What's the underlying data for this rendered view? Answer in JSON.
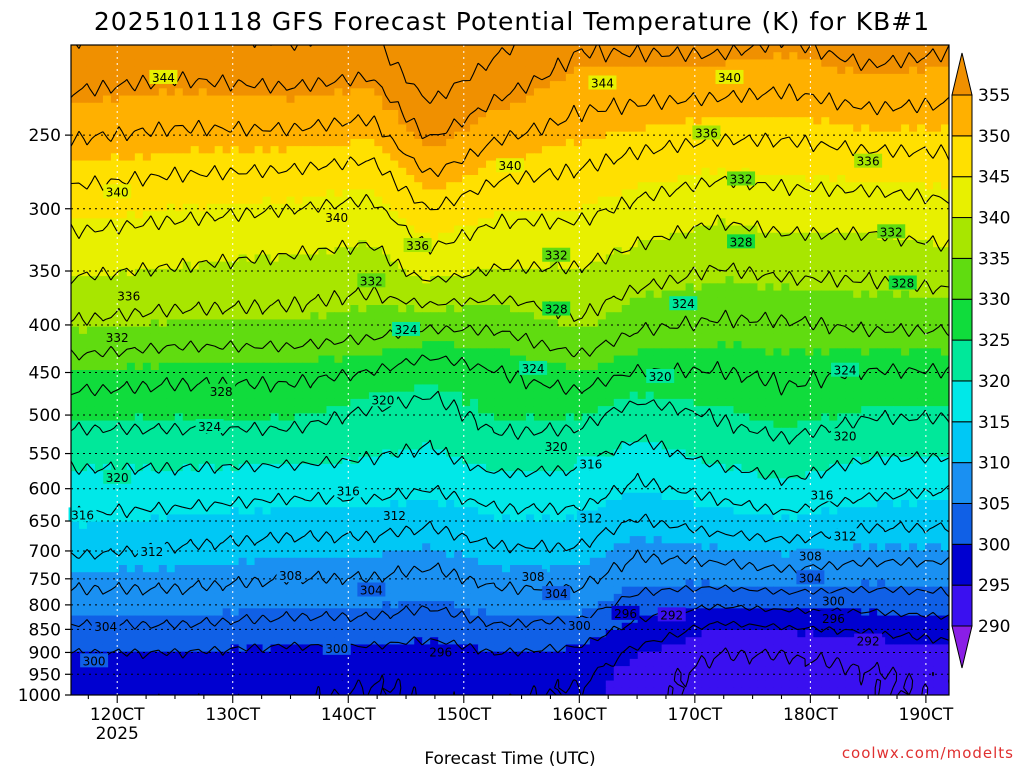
{
  "chart_data": {
    "type": "heatmap",
    "title": "2025101118 GFS Forecast Potential Temperature (K) for KB#1",
    "xlabel": "Forecast Time (UTC)",
    "ylabel": "",
    "x_ticks": [
      "120CT",
      "130CT",
      "140CT",
      "150CT",
      "160CT",
      "170CT",
      "180CT",
      "190CT"
    ],
    "x_tick_year": "2025",
    "x_range_days": [
      11.6,
      19.2
    ],
    "y_ticks": [
      250,
      300,
      350,
      400,
      450,
      500,
      550,
      600,
      650,
      700,
      750,
      800,
      850,
      900,
      950,
      1000
    ],
    "y_range_hpa": [
      200,
      1000
    ],
    "y_scale": "log",
    "colorbar": {
      "levels": [
        290,
        295,
        300,
        305,
        310,
        315,
        320,
        325,
        330,
        335,
        340,
        345,
        350,
        355
      ],
      "colors": [
        "#8a1ee6",
        "#3a10f0",
        "#0000d0",
        "#1060e6",
        "#1a90f2",
        "#00c8f5",
        "#00e8e8",
        "#00e89a",
        "#10dc3c",
        "#60dc10",
        "#a8e600",
        "#e8f000",
        "#ffe000",
        "#ffb000",
        "#f09000"
      ]
    },
    "contour_interval": 4,
    "profiles": [
      {
        "day": 11.6,
        "theta": [
          352,
          346,
          341,
          336,
          330,
          325,
          321,
          318,
          316,
          313,
          309,
          306,
          303,
          300,
          298,
          297
        ]
      },
      {
        "day": 12.5,
        "theta": [
          351,
          345,
          340,
          335,
          329,
          325,
          321,
          318,
          315,
          312,
          309,
          306,
          303,
          300,
          298,
          297
        ]
      },
      {
        "day": 13.5,
        "theta": [
          351,
          344,
          339,
          335,
          329,
          325,
          321,
          317,
          314,
          311,
          308,
          305,
          302,
          299,
          298,
          297
        ]
      },
      {
        "day": 14.2,
        "theta": [
          350,
          343,
          338,
          334,
          328,
          323,
          320,
          317,
          314,
          311,
          308,
          305,
          302,
          299,
          297,
          296
        ]
      },
      {
        "day": 14.7,
        "theta": [
          356,
          348,
          342,
          333,
          326,
          322,
          319,
          316,
          313,
          310,
          307,
          304,
          301,
          298,
          297,
          297
        ]
      },
      {
        "day": 15.3,
        "theta": [
          352,
          345,
          340,
          333,
          328,
          325,
          322,
          318,
          315,
          312,
          309,
          306,
          303,
          300,
          298,
          297
        ]
      },
      {
        "day": 16.0,
        "theta": [
          350,
          345,
          340,
          336,
          330,
          325,
          321,
          318,
          315,
          312,
          309,
          306,
          302,
          299,
          297,
          296
        ]
      },
      {
        "day": 16.5,
        "theta": [
          349,
          343,
          338,
          333,
          328,
          322,
          318,
          315,
          312,
          309,
          306,
          302,
          298,
          295,
          294,
          294
        ]
      },
      {
        "day": 17.2,
        "theta": [
          348,
          341,
          336,
          332,
          328,
          324,
          321,
          317,
          314,
          310,
          306,
          300,
          294,
          292,
          291,
          291
        ]
      },
      {
        "day": 17.8,
        "theta": [
          348,
          342,
          337,
          332,
          329,
          326,
          322,
          319,
          315,
          311,
          307,
          301,
          295,
          292,
          291,
          291
        ]
      },
      {
        "day": 18.5,
        "theta": [
          349,
          342,
          337,
          333,
          328,
          324,
          320,
          317,
          313,
          310,
          306,
          301,
          296,
          293,
          292,
          292
        ]
      },
      {
        "day": 19.2,
        "theta": [
          349,
          343,
          338,
          333,
          328,
          324,
          320,
          316,
          313,
          310,
          306,
          302,
          297,
          294,
          293,
          293
        ]
      }
    ],
    "contour_labels": [
      {
        "value": "344",
        "day": 12.4,
        "p": 217
      },
      {
        "value": "344",
        "day": 16.2,
        "p": 220
      },
      {
        "value": "340",
        "day": 17.3,
        "p": 217
      },
      {
        "value": "340",
        "day": 12.0,
        "p": 288
      },
      {
        "value": "340",
        "day": 13.9,
        "p": 307
      },
      {
        "value": "340",
        "day": 15.4,
        "p": 270
      },
      {
        "value": "336",
        "day": 12.1,
        "p": 373
      },
      {
        "value": "336",
        "day": 14.6,
        "p": 329
      },
      {
        "value": "336",
        "day": 17.1,
        "p": 249
      },
      {
        "value": "336",
        "day": 18.5,
        "p": 267
      },
      {
        "value": "332",
        "day": 12.0,
        "p": 413
      },
      {
        "value": "332",
        "day": 14.2,
        "p": 359
      },
      {
        "value": "332",
        "day": 15.8,
        "p": 337
      },
      {
        "value": "332",
        "day": 17.4,
        "p": 279
      },
      {
        "value": "332",
        "day": 18.7,
        "p": 318
      },
      {
        "value": "328",
        "day": 12.9,
        "p": 472
      },
      {
        "value": "328",
        "day": 15.8,
        "p": 385
      },
      {
        "value": "328",
        "day": 17.4,
        "p": 326
      },
      {
        "value": "328",
        "day": 18.8,
        "p": 361
      },
      {
        "value": "324",
        "day": 12.8,
        "p": 515
      },
      {
        "value": "324",
        "day": 14.5,
        "p": 405
      },
      {
        "value": "324",
        "day": 15.6,
        "p": 446
      },
      {
        "value": "324",
        "day": 16.9,
        "p": 380
      },
      {
        "value": "324",
        "day": 18.3,
        "p": 448
      },
      {
        "value": "320",
        "day": 12.0,
        "p": 584
      },
      {
        "value": "320",
        "day": 14.3,
        "p": 482
      },
      {
        "value": "320",
        "day": 15.8,
        "p": 541
      },
      {
        "value": "320",
        "day": 16.7,
        "p": 455
      },
      {
        "value": "320",
        "day": 18.3,
        "p": 527
      },
      {
        "value": "316",
        "day": 11.7,
        "p": 641
      },
      {
        "value": "316",
        "day": 14.0,
        "p": 604
      },
      {
        "value": "316",
        "day": 16.1,
        "p": 565
      },
      {
        "value": "316",
        "day": 18.1,
        "p": 610
      },
      {
        "value": "312",
        "day": 12.3,
        "p": 702
      },
      {
        "value": "312",
        "day": 14.4,
        "p": 642
      },
      {
        "value": "312",
        "day": 16.1,
        "p": 646
      },
      {
        "value": "312",
        "day": 18.3,
        "p": 675
      },
      {
        "value": "308",
        "day": 13.5,
        "p": 745
      },
      {
        "value": "308",
        "day": 15.6,
        "p": 747
      },
      {
        "value": "308",
        "day": 18.0,
        "p": 710
      },
      {
        "value": "304",
        "day": 11.9,
        "p": 845
      },
      {
        "value": "304",
        "day": 14.2,
        "p": 772
      },
      {
        "value": "304",
        "day": 15.8,
        "p": 779
      },
      {
        "value": "304",
        "day": 18.0,
        "p": 749
      },
      {
        "value": "300",
        "day": 11.8,
        "p": 920
      },
      {
        "value": "300",
        "day": 13.9,
        "p": 892
      },
      {
        "value": "300",
        "day": 16.0,
        "p": 843
      },
      {
        "value": "300",
        "day": 18.2,
        "p": 793
      },
      {
        "value": "296",
        "day": 14.8,
        "p": 900
      },
      {
        "value": "296",
        "day": 16.4,
        "p": 818
      },
      {
        "value": "296",
        "day": 18.2,
        "p": 828
      },
      {
        "value": "292",
        "day": 16.8,
        "p": 821
      },
      {
        "value": "292",
        "day": 18.5,
        "p": 876
      }
    ]
  },
  "watermark": "coolwx.com/modelts"
}
